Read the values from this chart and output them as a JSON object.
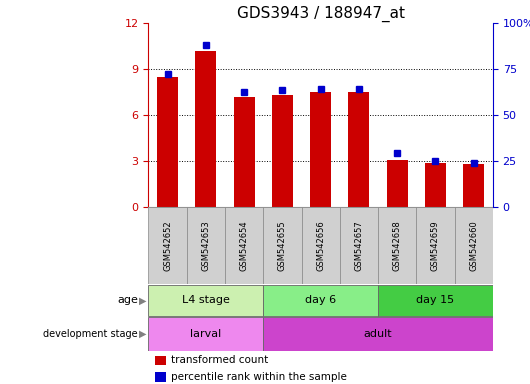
{
  "title": "GDS3943 / 188947_at",
  "categories": [
    "GSM542652",
    "GSM542653",
    "GSM542654",
    "GSM542655",
    "GSM542656",
    "GSM542657",
    "GSM542658",
    "GSM542659",
    "GSM542660"
  ],
  "red_values": [
    8.5,
    10.2,
    7.2,
    7.3,
    7.5,
    7.5,
    3.1,
    2.9,
    2.8
  ],
  "blue_values": [
    8.7,
    10.55,
    7.5,
    7.62,
    7.72,
    7.72,
    3.55,
    3.05,
    2.92
  ],
  "left_ylim": [
    0,
    12
  ],
  "left_yticks": [
    0,
    3,
    6,
    9,
    12
  ],
  "right_ylim": [
    0,
    100
  ],
  "right_yticks": [
    0,
    25,
    50,
    75,
    100
  ],
  "right_yticklabels": [
    "0",
    "25",
    "50",
    "75",
    "100%"
  ],
  "age_groups": [
    {
      "label": "L4 stage",
      "start": 0,
      "end": 3,
      "color": "#ccf0b0"
    },
    {
      "label": "day 6",
      "start": 3,
      "end": 6,
      "color": "#88ee88"
    },
    {
      "label": "day 15",
      "start": 6,
      "end": 9,
      "color": "#44cc44"
    }
  ],
  "dev_groups": [
    {
      "label": "larval",
      "start": 0,
      "end": 3,
      "color": "#ee88ee"
    },
    {
      "label": "adult",
      "start": 3,
      "end": 9,
      "color": "#cc44cc"
    }
  ],
  "legend_items": [
    {
      "color": "#cc0000",
      "label": "transformed count"
    },
    {
      "color": "#0000cc",
      "label": "percentile rank within the sample"
    }
  ],
  "bar_color": "#cc0000",
  "marker_color": "#0000cc",
  "title_fontsize": 11,
  "axis_color_left": "#cc0000",
  "axis_color_right": "#0000cc",
  "bar_width": 0.55,
  "xtick_bg": "#d0d0d0",
  "grid_yticks": [
    3,
    6,
    9
  ]
}
